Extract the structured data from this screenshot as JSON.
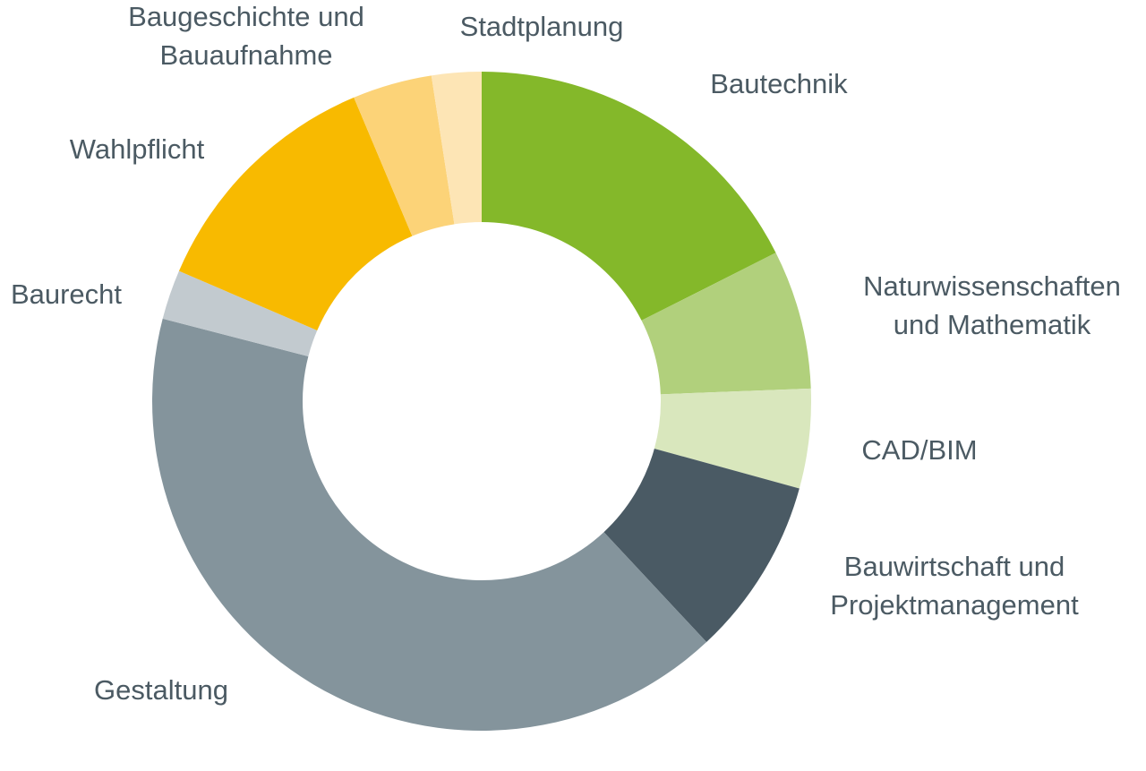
{
  "chart_data": {
    "type": "pie",
    "donut": true,
    "title": "",
    "legend": "none",
    "slices": [
      {
        "label": "Bautechnik",
        "label_lines": [
          "Bautechnik"
        ],
        "value": 18.0,
        "color": "#84b82a"
      },
      {
        "label": "Naturwissenschaften und Mathematik",
        "label_lines": [
          "Naturwissenschaften",
          "und Mathematik"
        ],
        "value": 7.0,
        "color": "#b1d07c"
      },
      {
        "label": "CAD/BIM",
        "label_lines": [
          "CAD/BIM"
        ],
        "value": 5.0,
        "color": "#d9e7bd"
      },
      {
        "label": "Bauwirtschaft und Projektmanagement",
        "label_lines": [
          "Bauwirtschaft und",
          "Projektmanagement"
        ],
        "value": 9.0,
        "color": "#4a5a64"
      },
      {
        "label": "Gestaltung",
        "label_lines": [
          "Gestaltung"
        ],
        "value": 42.0,
        "color": "#84949c"
      },
      {
        "label": "Baurecht",
        "label_lines": [
          "Baurecht"
        ],
        "value": 2.5,
        "color": "#c2cacf"
      },
      {
        "label": "Wahlpflicht",
        "label_lines": [
          "Wahlpflicht"
        ],
        "value": 12.5,
        "color": "#f8ba00"
      },
      {
        "label": "Baugeschichte und Bauaufnahme",
        "label_lines": [
          "Baugeschichte und",
          "Bauaufnahme"
        ],
        "value": 4.0,
        "color": "#fcd378"
      },
      {
        "label": "Stadtplanung",
        "label_lines": [
          "Stadtplanung"
        ],
        "value": 2.5,
        "color": "#fde5b5"
      }
    ]
  }
}
